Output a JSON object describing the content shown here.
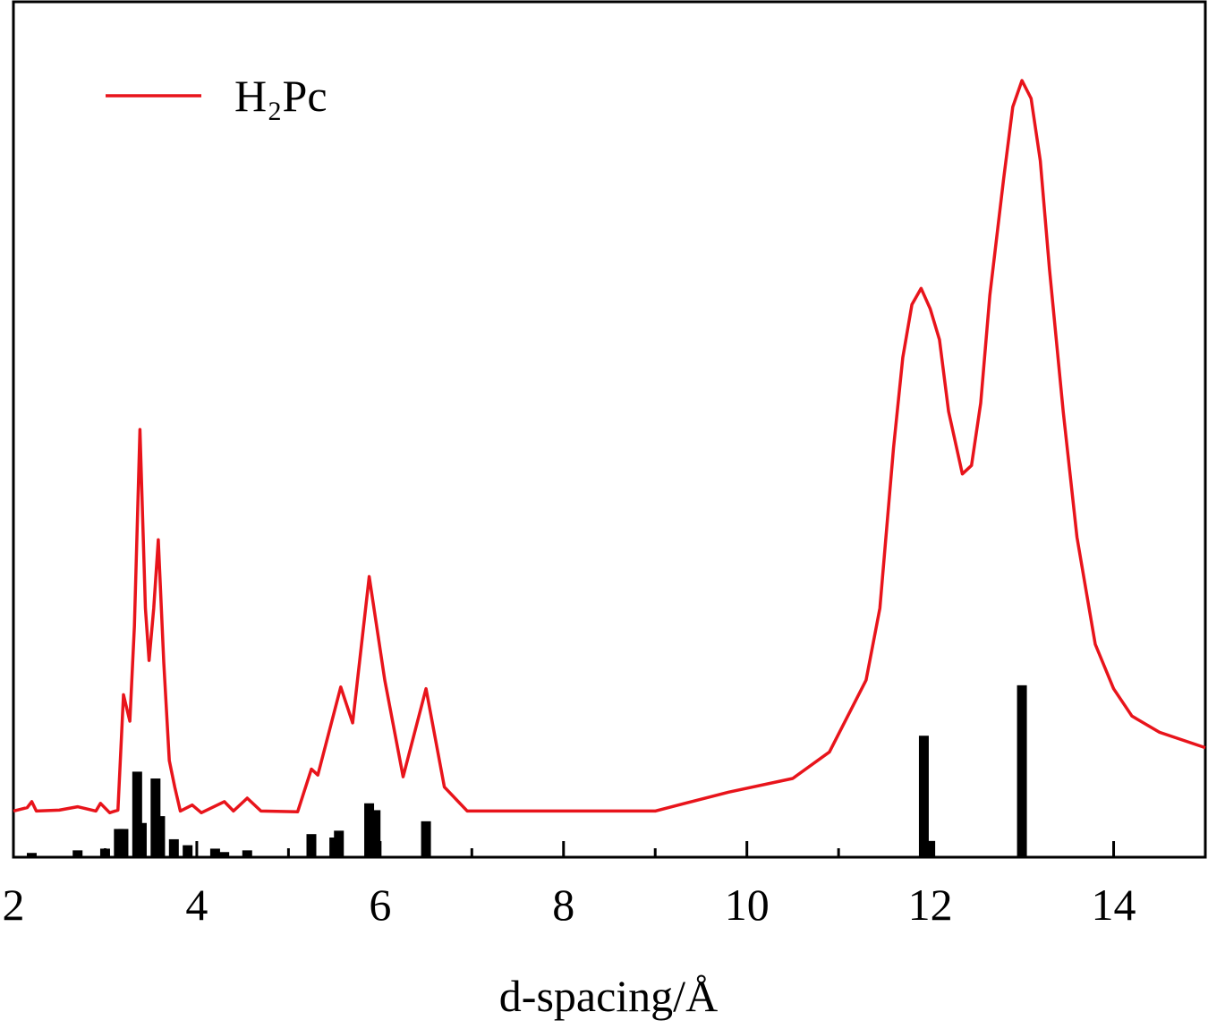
{
  "chart_data": {
    "type": "line",
    "xlabel": "d-spacing/Å",
    "xlim": [
      2,
      15
    ],
    "ylim": [
      0,
      100
    ],
    "xticks": [
      2,
      4,
      6,
      8,
      10,
      12,
      14
    ],
    "xminorticks": [
      3,
      5,
      7,
      9,
      11,
      13
    ],
    "legend": "upper left",
    "series": [
      {
        "name": "H₂Pc",
        "color": "#e8141b",
        "x": [
          2.0,
          2.15,
          2.2,
          2.25,
          2.5,
          2.7,
          2.9,
          2.95,
          3.05,
          3.14,
          3.2,
          3.27,
          3.32,
          3.38,
          3.44,
          3.48,
          3.53,
          3.58,
          3.64,
          3.7,
          3.76,
          3.82,
          3.95,
          4.05,
          4.3,
          4.4,
          4.55,
          4.7,
          5.1,
          5.25,
          5.32,
          5.57,
          5.7,
          5.88,
          6.05,
          6.25,
          6.5,
          6.7,
          6.95,
          9.0,
          9.8,
          10.5,
          10.9,
          11.3,
          11.45,
          11.6,
          11.7,
          11.8,
          11.9,
          12.0,
          12.1,
          12.2,
          12.35,
          12.45,
          12.55,
          12.65,
          12.8,
          12.9,
          13.0,
          13.1,
          13.2,
          13.3,
          13.45,
          13.6,
          13.8,
          14.0,
          14.2,
          14.5,
          15.0
        ],
        "values": [
          5.4,
          5.8,
          6.5,
          5.4,
          5.5,
          5.9,
          5.4,
          6.3,
          5.2,
          5.5,
          19.0,
          15.9,
          27.0,
          50.0,
          29.1,
          23.0,
          29.1,
          37.1,
          22.8,
          11.3,
          8.2,
          5.4,
          6.1,
          5.2,
          6.5,
          5.4,
          6.9,
          5.4,
          5.3,
          10.3,
          9.6,
          19.9,
          15.7,
          32.8,
          20.7,
          9.4,
          19.7,
          8.2,
          5.4,
          5.4,
          7.6,
          9.2,
          12.3,
          20.7,
          29.1,
          47.9,
          58.4,
          64.6,
          66.5,
          64.1,
          60.5,
          52.1,
          44.8,
          45.8,
          53.1,
          65.7,
          79.3,
          87.7,
          90.8,
          88.7,
          81.4,
          68.8,
          52.1,
          37.4,
          24.9,
          19.7,
          16.5,
          14.6,
          12.8
        ]
      }
    ],
    "sticks": {
      "color": "#000000",
      "x": [
        2.2,
        2.7,
        3.0,
        3.15,
        3.2,
        3.35,
        3.4,
        3.55,
        3.6,
        3.75,
        3.9,
        4.2,
        4.3,
        4.55,
        5.25,
        5.5,
        5.55,
        5.88,
        5.95,
        6.5,
        11.93,
        12.0,
        13.0
      ],
      "values": [
        0.5,
        0.8,
        1.0,
        3.3,
        3.3,
        10.0,
        4.0,
        9.2,
        4.8,
        2.1,
        1.4,
        1.0,
        0.6,
        0.8,
        2.7,
        2.3,
        3.1,
        6.3,
        5.5,
        4.2,
        14.2,
        1.9,
        20.1
      ]
    }
  }
}
